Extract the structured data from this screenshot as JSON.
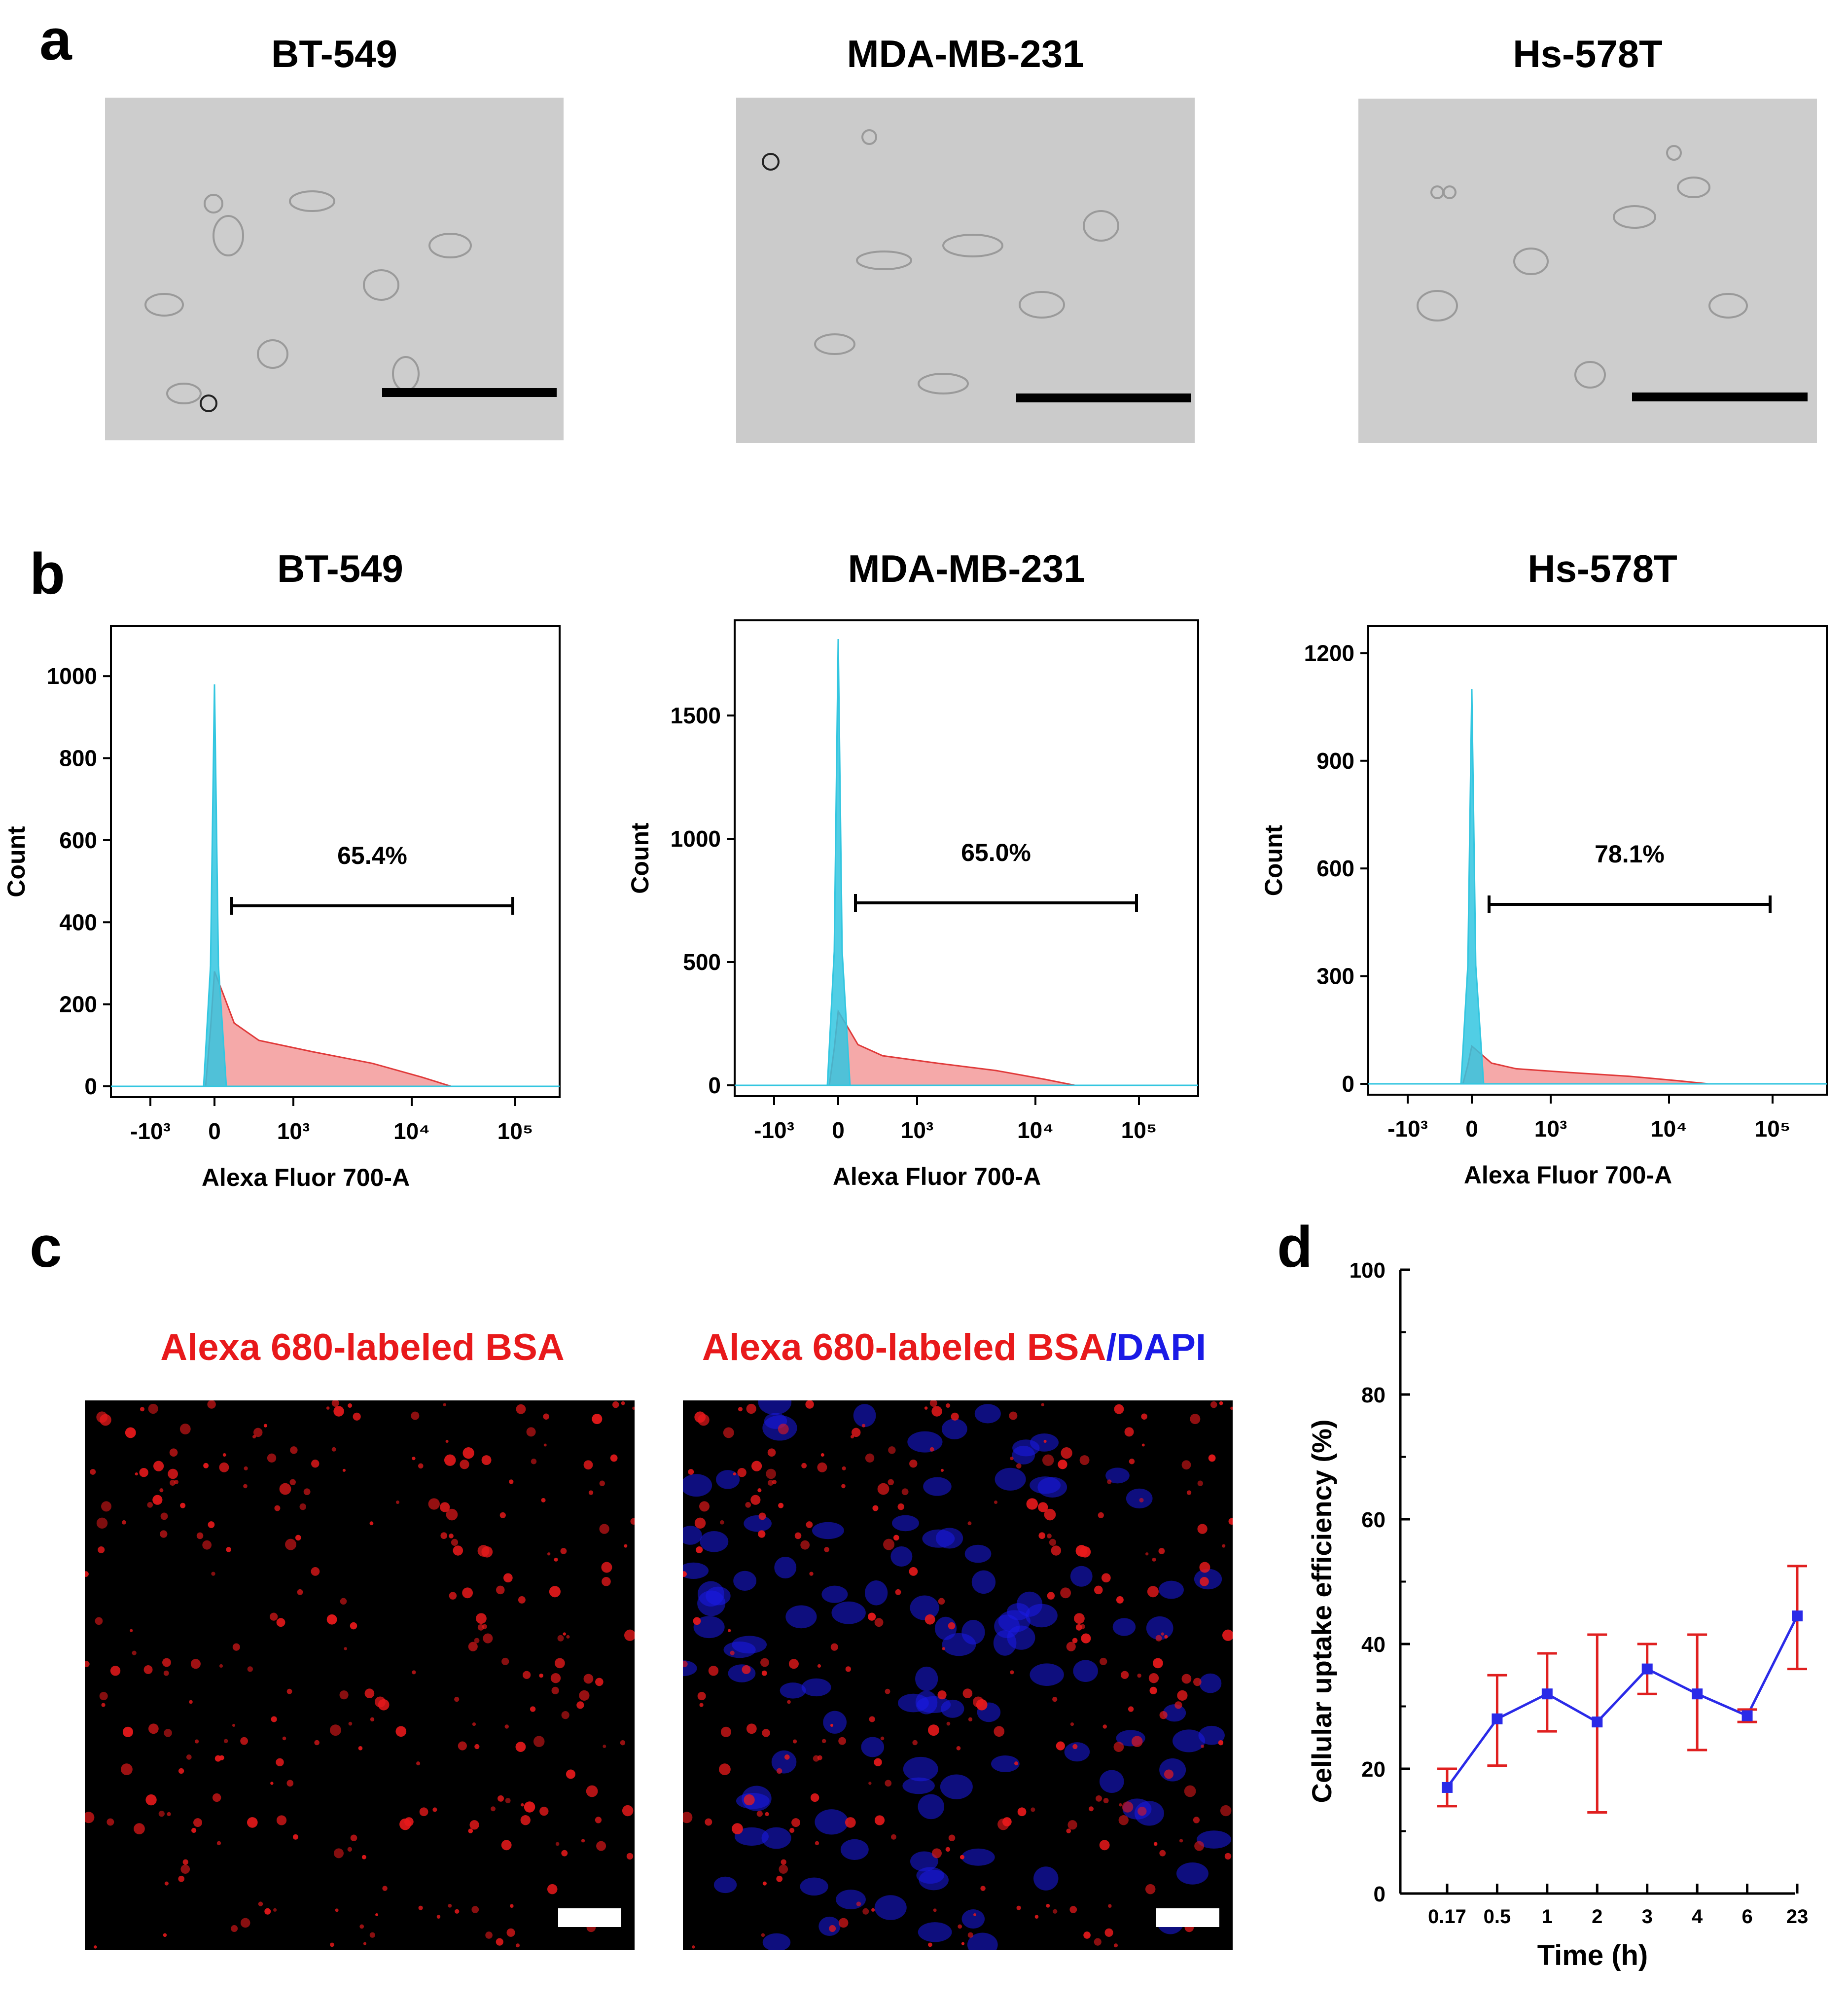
{
  "panel_a": {
    "letter": "a",
    "images": [
      {
        "title": "BT-549"
      },
      {
        "title": "MDA-MB-231"
      },
      {
        "title": "Hs-578T"
      }
    ]
  },
  "panel_b": {
    "letter": "b",
    "x_label": "Alexa Fluor 700-A",
    "y_label": "Count",
    "x_tick_labels": [
      "-10³",
      "0",
      "10³",
      "10⁴",
      "10⁵"
    ],
    "colors": {
      "control": "#33c6e0",
      "sample": "#f28c8c",
      "sample_edge": "#e03a3a"
    },
    "chart_data": [
      {
        "type": "area",
        "title": "BT-549",
        "gate_label": "65.4%",
        "ylim": [
          0,
          1100
        ],
        "y_ticks": [
          0,
          200,
          400,
          600,
          800,
          1000
        ],
        "control_peak": 980,
        "sample_peak": 280
      },
      {
        "type": "area",
        "title": "MDA-MB-231",
        "gate_label": "65.0%",
        "ylim": [
          0,
          1850
        ],
        "y_ticks": [
          0,
          500,
          1000,
          1500
        ],
        "control_peak": 1810,
        "sample_peak": 300
      },
      {
        "type": "area",
        "title": "Hs-578T",
        "gate_label": "78.1%",
        "ylim": [
          0,
          1250
        ],
        "y_ticks": [
          0,
          300,
          600,
          900,
          1200
        ],
        "control_peak": 1100,
        "sample_peak": 105
      }
    ]
  },
  "panel_c": {
    "letter": "c",
    "left_title": "Alexa 680-labeled BSA",
    "right_title_red": "Alexa 680-labeled BSA",
    "right_title_sep": "/",
    "right_title_blue": "DAPI",
    "colors": {
      "red": "#e8191b",
      "blue": "#1a1ae6"
    }
  },
  "panel_d": {
    "letter": "d",
    "chart_data": {
      "type": "line",
      "categories": [
        "0.17",
        "0.5",
        "1",
        "2",
        "3",
        "4",
        "6",
        "23"
      ],
      "values": [
        17,
        28,
        32,
        27.5,
        36,
        32,
        28.5,
        44.5
      ],
      "error_low": [
        14,
        20.5,
        26,
        13,
        32,
        23,
        27.5,
        36
      ],
      "error_high": [
        20,
        35,
        38.5,
        41.5,
        40,
        41.5,
        29.5,
        52.5
      ],
      "xlabel": "Time (h)",
      "ylabel": "Cellular uptake efficiency (%)",
      "ylim": [
        0,
        100
      ],
      "y_ticks": [
        0,
        20,
        40,
        60,
        80,
        100
      ],
      "line_color": "#2a2ae8",
      "error_color": "#e02020"
    }
  }
}
